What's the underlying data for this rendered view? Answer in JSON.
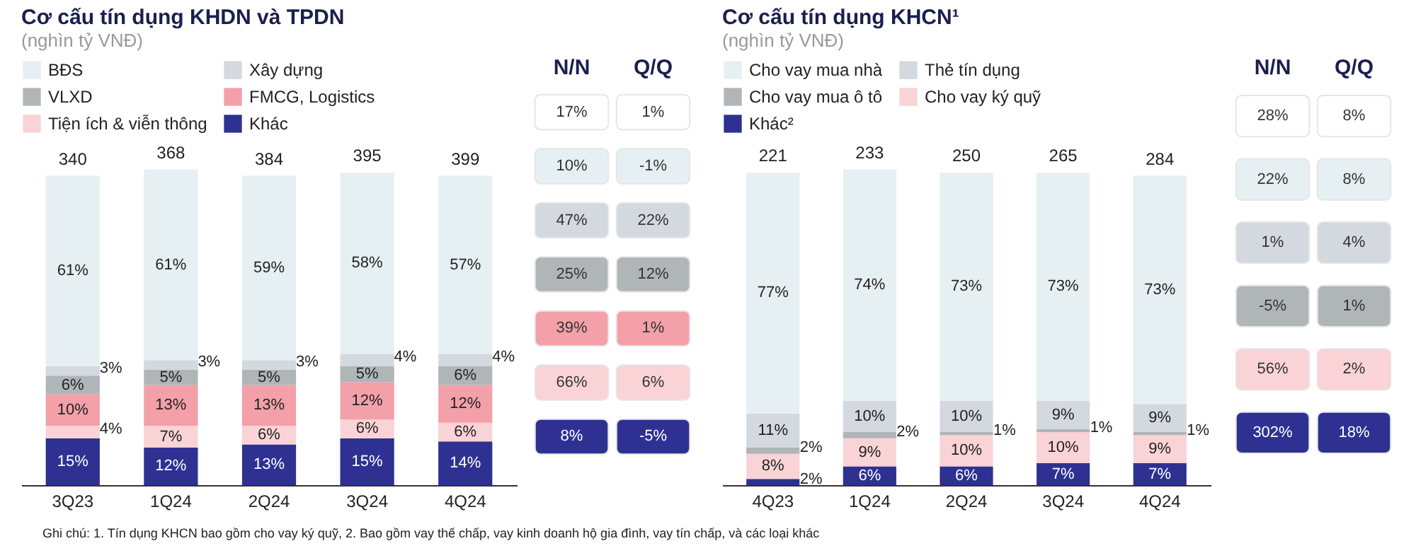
{
  "chart_data": [
    {
      "type": "bar",
      "title": "Cơ cấu tín dụng KHDN và TPDN",
      "subtitle": "(nghìn tỷ VNĐ)",
      "stacked": true,
      "legend": "top",
      "annotations": [
        "340",
        "368",
        "384",
        "395",
        "399",
        "Ghi chú: 1. Tín dụng KHCN bao gồm cho vay ký quỹ, 2. Bao gồm vay thế chấp, vay kinh doanh hộ gia đình, vay tín chấp, và các loại khác"
      ],
      "categories": [
        "3Q23",
        "1Q24",
        "2Q24",
        "3Q24",
        "4Q24"
      ],
      "series": [
        {
          "name": "Khác",
          "color": "#2e3192",
          "values": [
            15,
            12,
            13,
            15,
            14
          ],
          "value_labels": [
            "15%",
            "12%",
            "13%",
            "15%",
            "14%"
          ]
        },
        {
          "name": "Tiện ích & viễn thông",
          "color": "#f9d3d5",
          "values": [
            4,
            7,
            6,
            6,
            6
          ],
          "value_labels": [
            "4%",
            "7%",
            "6%",
            "6%",
            "6%"
          ]
        },
        {
          "name": "FMCG, Logistics",
          "color": "#f3a0a8",
          "values": [
            10,
            13,
            13,
            12,
            12
          ],
          "value_labels": [
            "10%",
            "13%",
            "13%",
            "12%",
            "12%"
          ]
        },
        {
          "name": "VLXD",
          "color": "#b0b5b8",
          "values": [
            6,
            5,
            5,
            5,
            6
          ],
          "value_labels": [
            "6%",
            "5%",
            "5%",
            "5%",
            "6%"
          ]
        },
        {
          "name": "Xây dựng",
          "color": "#d3d9de",
          "values": [
            3,
            3,
            3,
            4,
            4
          ],
          "value_labels": [
            "3%",
            "3%",
            "3%",
            "4%",
            "4%"
          ]
        },
        {
          "name": "BĐS",
          "color": "#e6eff1",
          "values": [
            61,
            61,
            59,
            58,
            57
          ],
          "value_labels": [
            "61%",
            "61%",
            "59%",
            "58%",
            "57%"
          ]
        }
      ]
    },
    {
      "type": "other",
      "categories": [
        "N/N",
        "Q/Q"
      ],
      "cell_labels": [
        [
          "17%",
          "1%"
        ],
        [
          "10%",
          "-1%"
        ],
        [
          "47%",
          "22%"
        ],
        [
          "25%",
          "12%"
        ],
        [
          "39%",
          "1%"
        ],
        [
          "66%",
          "6%"
        ],
        [
          "8%",
          "-5%"
        ]
      ],
      "colors": [
        "#ffffff",
        "#e6eff1",
        "#d3d9de",
        "#b0b5b8",
        "#f3a0a8",
        "#f9d3d5",
        "#2e3192"
      ]
    },
    {
      "type": "bar",
      "title": "Cơ cấu tín dụng KHCN¹",
      "subtitle": "(nghìn tỷ VNĐ)",
      "stacked": true,
      "legend": "top",
      "categories": [
        "4Q23",
        "1Q24",
        "2Q24",
        "3Q24",
        "4Q24"
      ],
      "annotations": [
        "221",
        "233",
        "250",
        "265",
        "284"
      ],
      "series": [
        {
          "name": "Khác²",
          "color": "#2e3192",
          "values": [
            2,
            6,
            6,
            7,
            7
          ],
          "value_labels": [
            "2%",
            "6%",
            "6%",
            "7%",
            "7%"
          ]
        },
        {
          "name": "Cho vay ký quỹ",
          "color": "#f9d3d5",
          "values": [
            8,
            9,
            10,
            10,
            9
          ],
          "value_labels": [
            "8%",
            "9%",
            "10%",
            "10%",
            "9%"
          ]
        },
        {
          "name": "Cho vay mua ô tô",
          "color": "#b0b5b8",
          "values": [
            2,
            2,
            1,
            1,
            1
          ],
          "value_labels": [
            "2%",
            "2%",
            "1%",
            "1%",
            "1%"
          ]
        },
        {
          "name": "Thẻ tín dụng",
          "color": "#d3d9de",
          "values": [
            11,
            10,
            10,
            9,
            9
          ],
          "value_labels": [
            "11%",
            "10%",
            "10%",
            "9%",
            "9%"
          ]
        },
        {
          "name": "Cho vay mua nhà",
          "color": "#e6eff1",
          "values": [
            77,
            74,
            73,
            73,
            73
          ],
          "value_labels": [
            "77%",
            "74%",
            "73%",
            "73%",
            "73%"
          ]
        }
      ]
    },
    {
      "type": "other",
      "categories": [
        "N/N",
        "Q/Q"
      ],
      "cell_labels": [
        [
          "28%",
          "8%"
        ],
        [
          "22%",
          "8%"
        ],
        [
          "1%",
          "4%"
        ],
        [
          "-5%",
          "1%"
        ],
        [
          "56%",
          "2%"
        ],
        [
          "302%",
          "18%"
        ]
      ],
      "colors": [
        "#ffffff",
        "#e6eff1",
        "#d3d9de",
        "#b0b5b8",
        "#f9d3d5",
        "#2e3192"
      ]
    }
  ]
}
